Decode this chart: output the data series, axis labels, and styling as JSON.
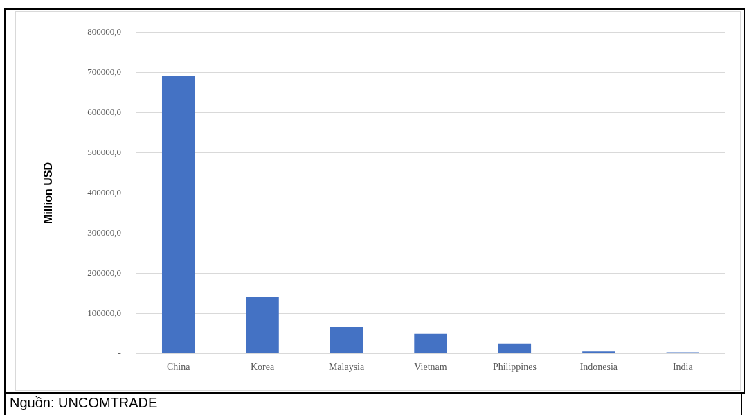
{
  "chart_data": {
    "type": "bar",
    "ylabel": "Million USD",
    "categories": [
      "China",
      "Korea",
      "Malaysia",
      "Vietnam",
      "Philippines",
      "Indonesia",
      "India"
    ],
    "values": [
      692000,
      140000,
      66000,
      49000,
      25000,
      5000,
      3000
    ],
    "color": "#4472c4",
    "ylim": [
      0,
      800000
    ],
    "yticks": [
      {
        "value": 0,
        "label": "-"
      },
      {
        "value": 100000,
        "label": "100000,0"
      },
      {
        "value": 200000,
        "label": "200000,0"
      },
      {
        "value": 300000,
        "label": "300000,0"
      },
      {
        "value": 400000,
        "label": "400000,0"
      },
      {
        "value": 500000,
        "label": "500000,0"
      },
      {
        "value": 600000,
        "label": "600000,0"
      },
      {
        "value": 700000,
        "label": "700000,0"
      },
      {
        "value": 800000,
        "label": "800000,0"
      }
    ],
    "grid": "y",
    "legend": false,
    "annotations": [
      "Nguồn: UNCOMTRADE"
    ]
  }
}
